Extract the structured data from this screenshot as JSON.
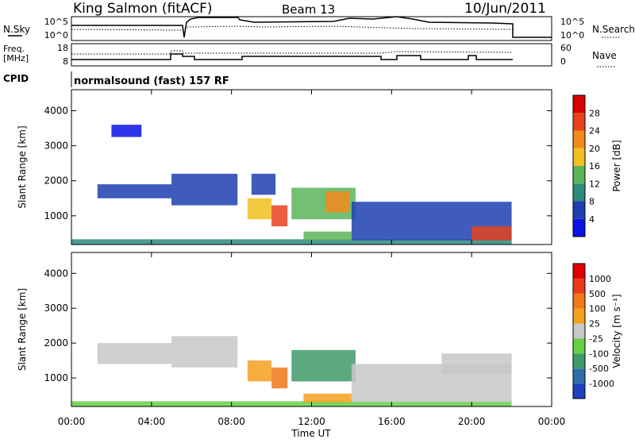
{
  "header": {
    "station": "King Salmon (fitACF)",
    "beam": "Beam 13",
    "date": "10/Jun/2011",
    "program": "normalsound (fast) 157 RF"
  },
  "strip_labels": {
    "nsky": "N.Sky",
    "nsky_ticks": [
      "10^5",
      "10^0"
    ],
    "nsearch": "N.Search",
    "nsearch_ticks": [
      "10^5",
      "10^0"
    ],
    "freq_line1": "Freq.",
    "freq_line2": "[MHz]",
    "freq_ticks": [
      "18",
      "8"
    ],
    "nave": "Nave",
    "nave_ticks": [
      "60",
      "0"
    ],
    "cpid": "CPID"
  },
  "chart_data": [
    {
      "type": "heatmap",
      "panel": "power",
      "ylabel": "Slant Range [km]",
      "yticks": [
        1000,
        2000,
        3000,
        4000
      ],
      "ylim": [
        180,
        4600
      ],
      "xticks": [
        "00:00",
        "04:00",
        "08:00",
        "12:00",
        "16:00",
        "20:00",
        "00:00"
      ],
      "xlim_hours": [
        0,
        24
      ],
      "colorbar_label": "Power [dB]",
      "colorbar_ticks": [
        4,
        8,
        12,
        16,
        20,
        24,
        28
      ],
      "colorbar_colors": [
        "#0a12e6",
        "#1d3fb0",
        "#2e8a7c",
        "#5ab45a",
        "#f0c020",
        "#f28a1a",
        "#e8421c",
        "#d80000"
      ],
      "regions": [
        {
          "t0": 0.0,
          "t1": 22.0,
          "r0": 180,
          "r1": 330,
          "level": 2
        },
        {
          "t0": 1.3,
          "t1": 5.0,
          "r0": 1500,
          "r1": 1900,
          "level": 1
        },
        {
          "t0": 5.0,
          "t1": 8.3,
          "r0": 1300,
          "r1": 2200,
          "level": 1
        },
        {
          "t0": 2.0,
          "t1": 3.5,
          "r0": 3250,
          "r1": 3600,
          "level": 0
        },
        {
          "t0": 8.8,
          "t1": 10.0,
          "r0": 900,
          "r1": 1500,
          "level": 4
        },
        {
          "t0": 10.0,
          "t1": 10.8,
          "r0": 700,
          "r1": 1300,
          "level": 6
        },
        {
          "t0": 11.0,
          "t1": 14.2,
          "r0": 900,
          "r1": 1800,
          "level": 3
        },
        {
          "t0": 12.7,
          "t1": 13.9,
          "r0": 1100,
          "r1": 1700,
          "level": 5
        },
        {
          "t0": 11.6,
          "t1": 14.0,
          "r0": 300,
          "r1": 550,
          "level": 3
        },
        {
          "t0": 9.0,
          "t1": 10.2,
          "r0": 1600,
          "r1": 2200,
          "level": 1
        },
        {
          "t0": 14.0,
          "t1": 22.0,
          "r0": 300,
          "r1": 1400,
          "level": 1
        },
        {
          "t0": 20.0,
          "t1": 22.0,
          "r0": 300,
          "r1": 700,
          "level": 6
        }
      ]
    },
    {
      "type": "heatmap",
      "panel": "velocity",
      "ylabel": "Slant Range [km]",
      "yticks": [
        1000,
        2000,
        3000,
        4000
      ],
      "ylim": [
        180,
        4600
      ],
      "xticks": [
        "00:00",
        "04:00",
        "08:00",
        "12:00",
        "16:00",
        "20:00",
        "00:00"
      ],
      "xlabel": "Time UT",
      "xlim_hours": [
        0,
        24
      ],
      "colorbar_label": "Velocity [m s⁻¹]",
      "colorbar_ticks": [
        1000,
        500,
        100,
        25,
        -25,
        -100,
        -500,
        -1000
      ],
      "colorbar_colors": [
        "#1f3fbf",
        "#2e6fa8",
        "#3f9a6a",
        "#66d044",
        "#c8c8c8",
        "#f4a020",
        "#f07818",
        "#e83a1a",
        "#e00000"
      ],
      "regions": [
        {
          "t0": 0.0,
          "t1": 22.0,
          "r0": 180,
          "r1": 330,
          "level": 3
        },
        {
          "t0": 1.3,
          "t1": 5.0,
          "r0": 1400,
          "r1": 2000,
          "level": 4
        },
        {
          "t0": 5.0,
          "t1": 8.3,
          "r0": 1300,
          "r1": 2200,
          "level": 4
        },
        {
          "t0": 8.8,
          "t1": 10.0,
          "r0": 900,
          "r1": 1500,
          "level": 5
        },
        {
          "t0": 10.0,
          "t1": 10.8,
          "r0": 700,
          "r1": 1300,
          "level": 6
        },
        {
          "t0": 11.0,
          "t1": 14.2,
          "r0": 900,
          "r1": 1800,
          "level": 2
        },
        {
          "t0": 11.6,
          "t1": 14.0,
          "r0": 300,
          "r1": 550,
          "level": 5
        },
        {
          "t0": 14.0,
          "t1": 22.0,
          "r0": 300,
          "r1": 1400,
          "level": 4
        },
        {
          "t0": 18.5,
          "t1": 22.0,
          "r0": 1100,
          "r1": 1700,
          "level": 4
        }
      ]
    }
  ]
}
